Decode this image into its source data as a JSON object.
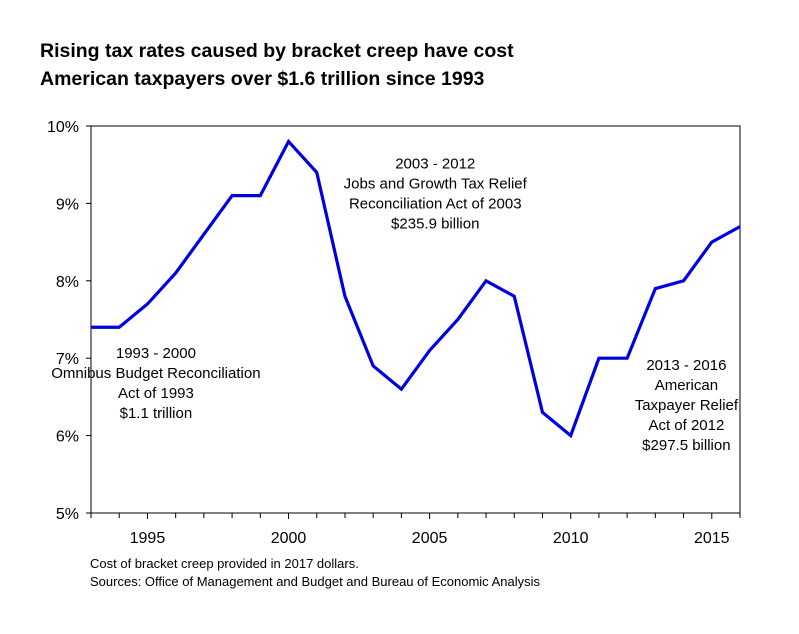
{
  "chart_data": {
    "type": "line",
    "title": [
      "Rising tax rates caused by bracket creep have cost",
      "American taxpayers over $1.6 trillion since 1993"
    ],
    "x": [
      1993,
      1994,
      1995,
      1996,
      1997,
      1998,
      1999,
      2000,
      2001,
      2002,
      2003,
      2004,
      2005,
      2006,
      2007,
      2008,
      2009,
      2010,
      2011,
      2012,
      2013,
      2014,
      2015,
      2016
    ],
    "series": [
      {
        "values": [
          7.4,
          7.4,
          7.7,
          8.1,
          8.6,
          9.1,
          9.1,
          9.8,
          9.4,
          7.8,
          6.9,
          6.6,
          7.1,
          7.5,
          8.0,
          7.8,
          6.3,
          6.0,
          7.0,
          7.0,
          7.9,
          8.0,
          8.5,
          8.7
        ],
        "color": "#0000e0"
      }
    ],
    "xlim": [
      1993,
      2016
    ],
    "ylim": [
      5,
      10
    ],
    "xticks": [
      1995,
      2000,
      2005,
      2010,
      2015
    ],
    "xtick_labels": [
      "1995",
      "2000",
      "2005",
      "2010",
      "2015"
    ],
    "yticks": [
      5,
      6,
      7,
      8,
      9,
      10
    ],
    "ytick_labels": [
      "5%",
      "6%",
      "7%",
      "8%",
      "9%",
      "10%"
    ],
    "grid": false,
    "annotations": [
      {
        "lines": [
          "1993 - 2000",
          "Omnibus Budget Reconciliation",
          "Act of 1993",
          "$1.1 trillion"
        ],
        "x": 1995.3,
        "y": 7.0
      },
      {
        "lines": [
          "2003 - 2012",
          "Jobs and Growth Tax Relief",
          "Reconciliation Act of 2003",
          "$235.9 billion"
        ],
        "x": 2005.2,
        "y": 9.45
      },
      {
        "lines": [
          "2013 - 2016",
          "American",
          "Taxpayer Relief",
          "Act of 2012",
          "$297.5 billion"
        ],
        "x": 2014.1,
        "y": 6.85
      }
    ]
  },
  "notes": [
    "Cost of bracket creep provided in 2017 dollars.",
    "Sources: Office of Management and Budget and Bureau of Economic Analysis"
  ]
}
